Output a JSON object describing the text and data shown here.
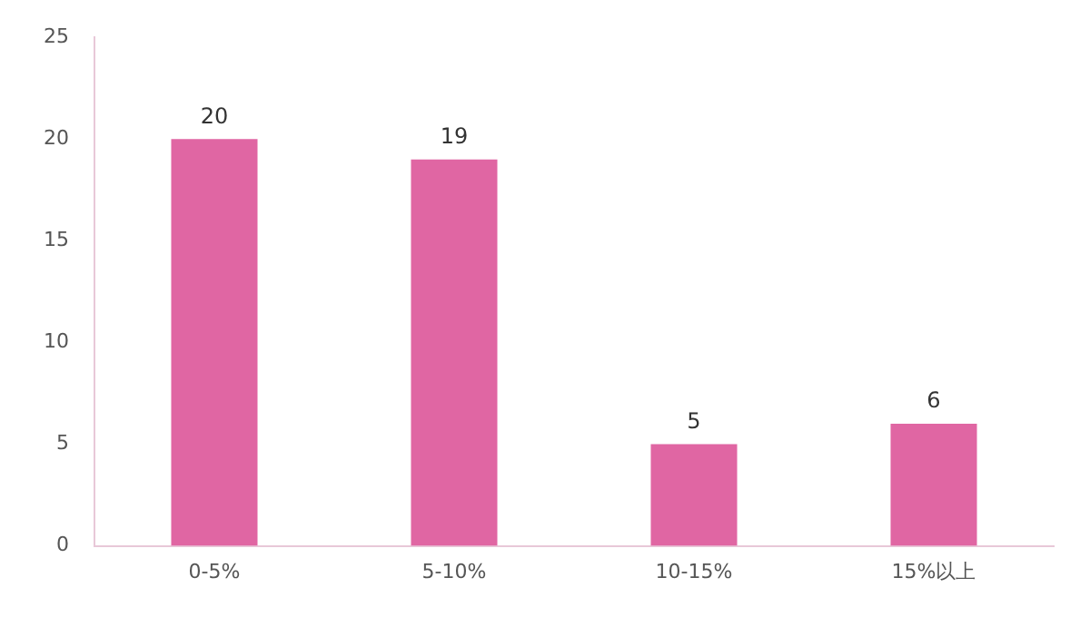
{
  "chart_data": {
    "type": "bar",
    "categories": [
      "0-5%",
      "5-10%",
      "10-15%",
      "15%以上"
    ],
    "values": [
      20,
      19,
      5,
      6
    ],
    "color": "#e066a3",
    "ylim": [
      0,
      25
    ],
    "yticks": [
      0,
      5,
      10,
      15,
      20,
      25
    ],
    "grid": false,
    "data_labels": true,
    "legend": false
  }
}
